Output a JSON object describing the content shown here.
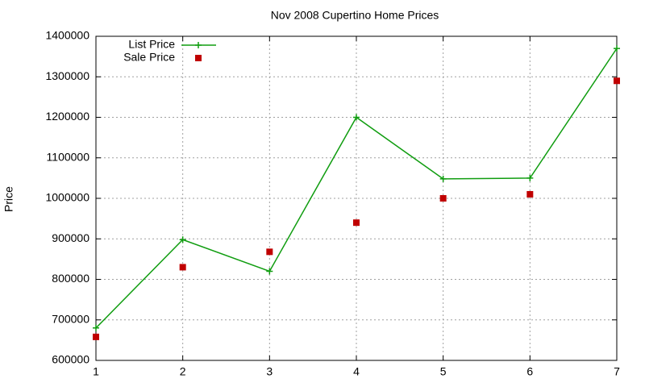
{
  "chart_data": {
    "type": "line",
    "title": "Nov 2008 Cupertino Home Prices",
    "y_label": "Price",
    "x": [
      1,
      2,
      3,
      4,
      5,
      6,
      7
    ],
    "xlim": [
      1,
      7
    ],
    "xticks": [
      1,
      2,
      3,
      4,
      5,
      6,
      7
    ],
    "ylim": [
      600000,
      1400000
    ],
    "yticks": [
      600000,
      700000,
      800000,
      900000,
      1000000,
      1100000,
      1200000,
      1300000,
      1400000
    ],
    "grid": true,
    "legend": "top left",
    "series": [
      {
        "name": "List Price",
        "color": "#109d10",
        "line": true,
        "marker": "plus",
        "values": [
          680000,
          898000,
          820000,
          1200000,
          1048000,
          1050000,
          1370000
        ]
      },
      {
        "name": "Sale Price",
        "color": "#c00000",
        "line": false,
        "marker": "square",
        "values": [
          658000,
          830000,
          868000,
          940000,
          1000000,
          1010000,
          1290000
        ]
      }
    ]
  }
}
